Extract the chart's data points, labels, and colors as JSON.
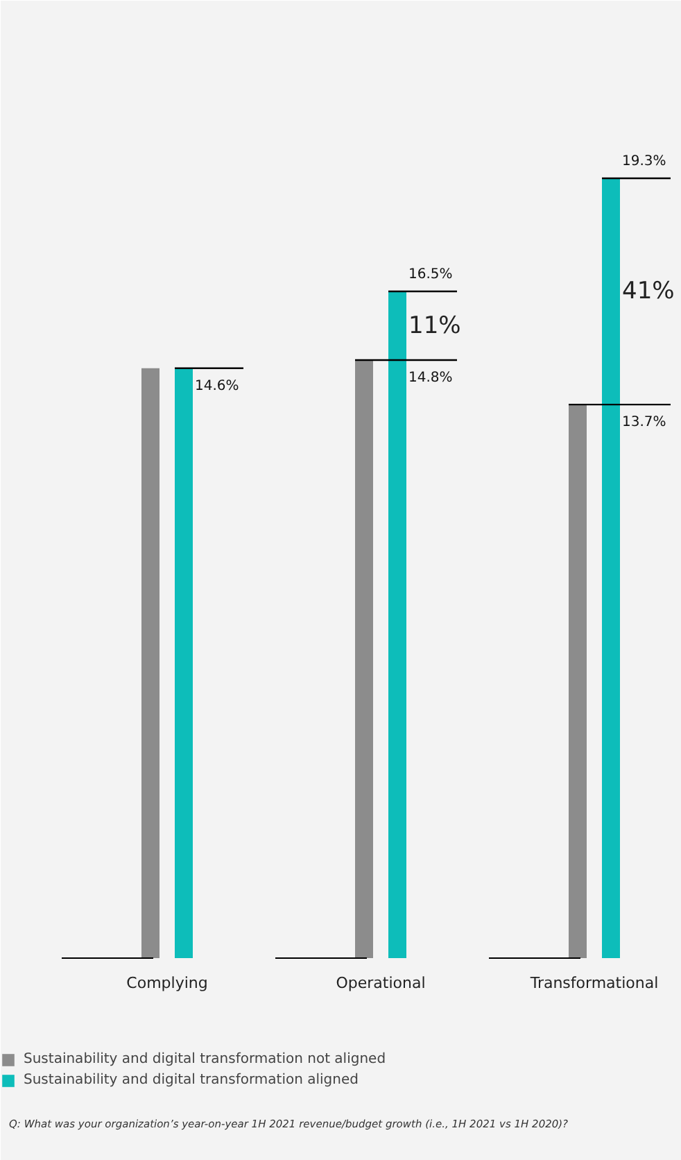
{
  "chart_data": {
    "type": "bar",
    "categories": [
      "Complying",
      "Operational",
      "Transformational"
    ],
    "series": [
      {
        "name": "Sustainability and digital transformation not aligned",
        "color": "#8c8c8c",
        "values": [
          14.6,
          14.8,
          13.7
        ],
        "value_labels": [
          null,
          "14.8%",
          "13.7%"
        ]
      },
      {
        "name": "Sustainability and digital transformation aligned",
        "color": "#0dbdba",
        "values": [
          14.6,
          16.5,
          19.3
        ],
        "value_labels": [
          "14.6%",
          "16.5%",
          "19.3%"
        ]
      }
    ],
    "annotations": [
      "11%",
      "41%",
      "Q: What was your organization’s year-on-year 1H 2021 revenue/budget growth (i.e., 1H 2021 vs 1H 2020)?"
    ],
    "legend": "bottom"
  }
}
